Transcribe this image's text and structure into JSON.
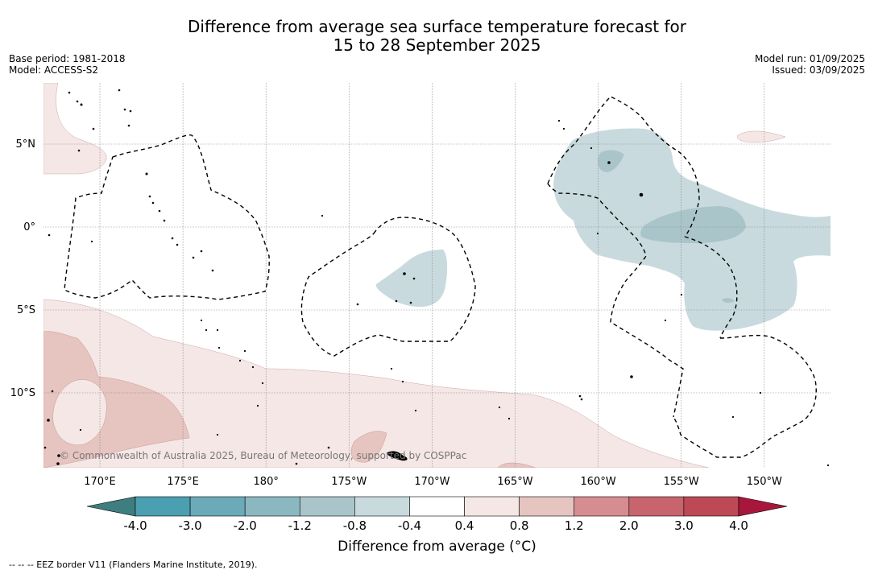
{
  "title_line1": "Difference from average sea surface temperature forecast for",
  "title_line2": "15 to 28 September 2025",
  "base_period": "Base period: 1981-2018",
  "model": "Model: ACCESS-S2",
  "model_run": "Model run: 01/09/2025",
  "issued": "Issued: 03/09/2025",
  "copyright": "© Commonwealth of Australia 2025, Bureau of Meteorology, supported by COSPPac",
  "lat_labels": [
    "5°N",
    "0°",
    "5°S",
    "10°S"
  ],
  "lon_labels": [
    "170°E",
    "175°E",
    "180°",
    "175°W",
    "170°W",
    "165°W",
    "160°W",
    "155°W",
    "150°W"
  ],
  "colorbar": {
    "ticks": [
      "-4.0",
      "-3.0",
      "-2.0",
      "-1.2",
      "-0.8",
      "-0.4",
      "0.4",
      "0.8",
      "1.2",
      "2.0",
      "3.0",
      "4.0"
    ],
    "colors": [
      "#4aa0b0",
      "#6aaab9",
      "#8bb8c0",
      "#aac5ca",
      "#c8dade",
      "#ffffff",
      "#f5e7e6",
      "#e6c4bf",
      "#d68d92",
      "#c8646e",
      "#bd4957"
    ],
    "under_color": "#3e7d80",
    "over_color": "#a8173b",
    "title": "Difference from average (°C)"
  },
  "footnote": "--  --  -- EEZ border V11 (Flanders Marine Institute, 2019)."
}
